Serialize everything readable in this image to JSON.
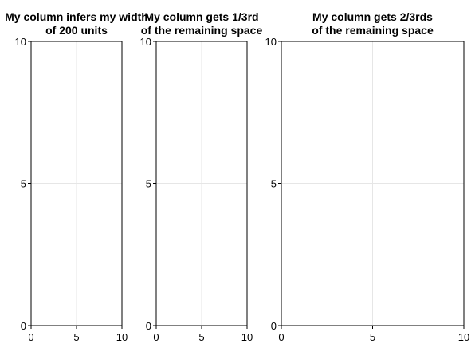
{
  "chart_data": [
    {
      "type": "line",
      "title_lines": [
        "My column infers my width",
        "of 200 units"
      ],
      "xlabel": "",
      "ylabel": "",
      "xlim": [
        0,
        10
      ],
      "ylim": [
        0,
        10
      ],
      "xticks": [
        0,
        5,
        10
      ],
      "yticks": [
        0,
        5,
        10
      ],
      "xtick_labels": [
        "0",
        "5",
        "10"
      ],
      "ytick_labels": [
        "0",
        "5",
        "10"
      ],
      "grid": true,
      "series": []
    },
    {
      "type": "line",
      "title_lines": [
        "My column gets 1/3rd",
        "of the remaining space"
      ],
      "xlabel": "",
      "ylabel": "",
      "xlim": [
        0,
        10
      ],
      "ylim": [
        0,
        10
      ],
      "xticks": [
        0,
        5,
        10
      ],
      "yticks": [
        0,
        5,
        10
      ],
      "xtick_labels": [
        "0",
        "5",
        "10"
      ],
      "ytick_labels": [
        "0",
        "5",
        "10"
      ],
      "grid": true,
      "series": []
    },
    {
      "type": "line",
      "title_lines": [
        "My column gets 2/3rds",
        "of the remaining space"
      ],
      "xlabel": "",
      "ylabel": "",
      "xlim": [
        0,
        10
      ],
      "ylim": [
        0,
        10
      ],
      "xticks": [
        0,
        5,
        10
      ],
      "yticks": [
        0,
        5,
        10
      ],
      "xtick_labels": [
        "0",
        "5",
        "10"
      ],
      "ytick_labels": [
        "0",
        "5",
        "10"
      ],
      "grid": true,
      "series": []
    }
  ]
}
